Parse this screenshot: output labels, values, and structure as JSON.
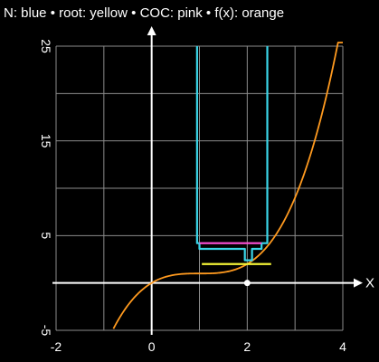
{
  "legend_text": "N: blue • root: yellow • COC: pink • f(x): orange",
  "x_axis_label": "X",
  "colors": {
    "background": "#000000",
    "grid": "#8c8c8c",
    "axes": "#ffffff",
    "N": "#3ad6e8",
    "root": "#f2f236",
    "COC": "#ff4fd8",
    "f": "#ff9a1f",
    "marker": "#ffffff"
  },
  "chart_data": {
    "type": "line",
    "title": "",
    "xlabel": "X",
    "ylabel": "",
    "xlim": [
      -2,
      4
    ],
    "ylim": [
      -5,
      25
    ],
    "x_ticks": [
      -2,
      0,
      2,
      4
    ],
    "y_ticks": [
      -5,
      5,
      15,
      25
    ],
    "grid": true,
    "legend_placement": "top",
    "series": [
      {
        "name": "f(x)",
        "color_key": "f",
        "function": "x^3 - 3x^2 + 3x",
        "x_range": [
          -0.8,
          4
        ]
      },
      {
        "name": "N",
        "color_key": "N",
        "points": [
          [
            0.95,
            25
          ],
          [
            0.95,
            4.2
          ],
          [
            1.0,
            4.2
          ],
          [
            1.0,
            3.6
          ],
          [
            1.0,
            3.6
          ],
          [
            1.95,
            3.6
          ],
          [
            1.95,
            2.4
          ],
          [
            2.1,
            2.4
          ],
          [
            2.1,
            3.6
          ],
          [
            2.3,
            3.6
          ],
          [
            2.3,
            4.2
          ],
          [
            2.42,
            4.2
          ],
          [
            2.42,
            25
          ]
        ]
      },
      {
        "name": "COC",
        "color_key": "COC",
        "points": [
          [
            1.0,
            4.2
          ],
          [
            2.3,
            4.2
          ]
        ]
      },
      {
        "name": "root",
        "color_key": "root",
        "points": [
          [
            1.05,
            2.0
          ],
          [
            2.5,
            2.0
          ]
        ]
      }
    ],
    "markers": [
      {
        "x": 2,
        "y": 0
      }
    ]
  }
}
